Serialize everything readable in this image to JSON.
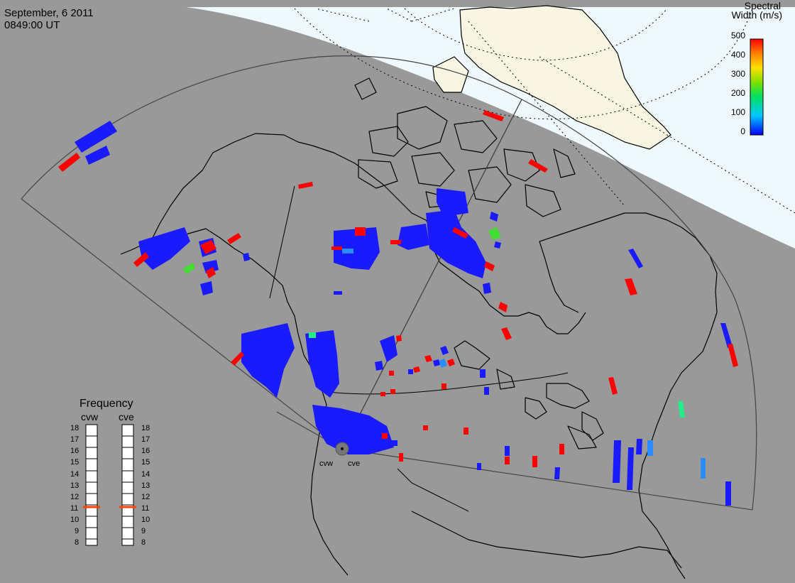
{
  "header": {
    "date": "September, 6 2011",
    "time": "0849:00 UT"
  },
  "colorbar": {
    "title_line1": "Spectral",
    "title_line2": "Width (m/s)",
    "ticks": [
      "500",
      "400",
      "300",
      "200",
      "100",
      "0"
    ]
  },
  "frequency_panel": {
    "title": "Frequency",
    "columns": [
      "cvw",
      "cve"
    ],
    "levels": [
      "18",
      "17",
      "16",
      "15",
      "14",
      "13",
      "12",
      "11",
      "10",
      "9",
      "8"
    ],
    "cvw_value_mhz": 10.8,
    "cve_value_mhz": 10.8
  },
  "radars": {
    "west": "cvw",
    "east": "cve"
  },
  "colors": {
    "background": "#999999",
    "daylight": "#eef8fd",
    "land_sunlit": "#f8f6e2",
    "scatter_low": "#1a1aff",
    "scatter_high": "#ff0000",
    "frequency_marker": "#ff4000"
  }
}
